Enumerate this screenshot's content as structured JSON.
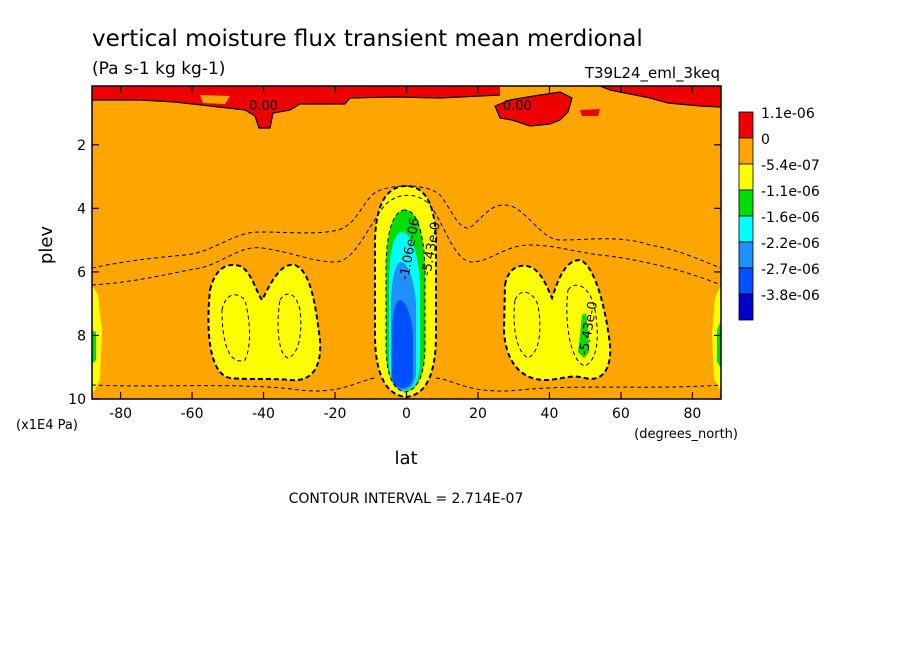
{
  "chart_data": {
    "type": "heatmap",
    "title": "vertical moisture flux transient mean merdional",
    "units": "(Pa s-1 kg kg-1)",
    "run_label": "T39L24_eml_3keq",
    "xlabel": "lat",
    "x_units": "(degrees_north)",
    "ylabel": "plev",
    "y_units": "(x1E4 Pa)",
    "xlim": [
      -88,
      88
    ],
    "ylim": [
      0.15,
      10
    ],
    "y_inverted": true,
    "x_ticks": [
      -80,
      -60,
      -40,
      -20,
      0,
      20,
      40,
      60,
      80
    ],
    "y_ticks": [
      2,
      4,
      6,
      8,
      10
    ],
    "contour_interval_text": "CONTOUR INTERVAL = 2.714E-07",
    "legend_placement": "right",
    "legend": [
      {
        "label": "1.1e-06",
        "color": "#ee0000"
      },
      {
        "label": "0",
        "color": "#ffa500"
      },
      {
        "label": "-5.4e-07",
        "color": "#ffff00"
      },
      {
        "label": "-1.1e-06",
        "color": "#00dd00"
      },
      {
        "label": "-1.6e-06",
        "color": "#00ffff"
      },
      {
        "label": "-2.2e-06",
        "color": "#1e90ff"
      },
      {
        "label": "-2.7e-06",
        "color": "#0050ff"
      },
      {
        "label": "-3.8e-06",
        "color": "#0000cc"
      }
    ],
    "contour_labels": [
      {
        "text": "0.00",
        "lat": -40,
        "plev": 0.9
      },
      {
        "text": "0.00",
        "lat": 31,
        "plev": 0.9
      },
      {
        "text": "0.00",
        "lat": 83,
        "plev": 0.15
      },
      {
        "text": "-1.06e-06",
        "lat": 2,
        "plev": 5.3
      },
      {
        "text": "-5.43e-0",
        "lat": 8,
        "plev": 5.3
      },
      {
        "text": "-5.43e-0",
        "lat": 52,
        "plev": 7.8
      }
    ]
  }
}
